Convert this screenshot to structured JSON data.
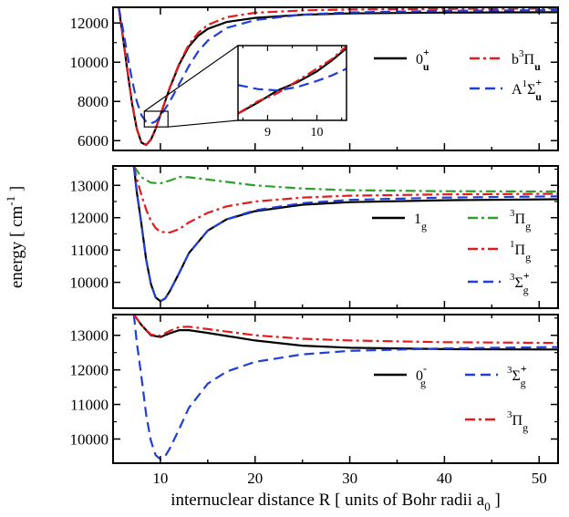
{
  "chart_data": [
    {
      "type": "line",
      "panel": "top",
      "xlim": [
        5,
        52
      ],
      "ylim": [
        5500,
        12800
      ],
      "yticks": [
        6000,
        8000,
        10000,
        12000
      ],
      "xticks": [
        10,
        20,
        30,
        40,
        50
      ],
      "legend_placement": "right",
      "series": [
        {
          "name_main": "0",
          "name_sub": "u",
          "name_sup": "+",
          "color": "#000000",
          "dash": "solid",
          "points": [
            [
              5.6,
              12800
            ],
            [
              6,
              11400
            ],
            [
              6.5,
              9600
            ],
            [
              7,
              7900
            ],
            [
              7.5,
              6600
            ],
            [
              8,
              5900
            ],
            [
              8.5,
              5780
            ],
            [
              9,
              6050
            ],
            [
              9.5,
              6600
            ],
            [
              10,
              7300
            ],
            [
              11,
              8700
            ],
            [
              12,
              9900
            ],
            [
              13,
              10800
            ],
            [
              14,
              11350
            ],
            [
              15,
              11700
            ],
            [
              17,
              12050
            ],
            [
              20,
              12260
            ],
            [
              25,
              12420
            ],
            [
              30,
              12490
            ],
            [
              40,
              12530
            ],
            [
              52,
              12550
            ]
          ]
        },
        {
          "name_main": "b",
          "name_supmain": "3",
          "name_greek": "Π",
          "name_sub": "u",
          "color": "#e41a1c",
          "dash": "dashdot",
          "points": [
            [
              5.6,
              12800
            ],
            [
              6,
              11450
            ],
            [
              6.5,
              9650
            ],
            [
              7,
              7950
            ],
            [
              7.5,
              6620
            ],
            [
              8,
              5910
            ],
            [
              8.5,
              5790
            ],
            [
              9,
              6070
            ],
            [
              9.5,
              6620
            ],
            [
              10,
              7320
            ],
            [
              11,
              8730
            ],
            [
              12,
              9950
            ],
            [
              13,
              10900
            ],
            [
              14,
              11500
            ],
            [
              15,
              11900
            ],
            [
              17,
              12300
            ],
            [
              20,
              12520
            ],
            [
              25,
              12640
            ],
            [
              30,
              12690
            ],
            [
              40,
              12720
            ],
            [
              52,
              12740
            ]
          ]
        },
        {
          "name_main": "A",
          "name_supmain": "1",
          "name_greek": "Σ",
          "name_sub": "u",
          "name_sup": "+",
          "color": "#1f3fd6",
          "dash": "dashed",
          "points": [
            [
              5.6,
              12800
            ],
            [
              6,
              11800
            ],
            [
              6.5,
              10400
            ],
            [
              7,
              9100
            ],
            [
              7.5,
              8000
            ],
            [
              8,
              7300
            ],
            [
              8.5,
              6960
            ],
            [
              9,
              6880
            ],
            [
              9.5,
              6980
            ],
            [
              10,
              7250
            ],
            [
              11,
              8000
            ],
            [
              12,
              8900
            ],
            [
              13,
              9800
            ],
            [
              14,
              10550
            ],
            [
              15,
              11100
            ],
            [
              17,
              11750
            ],
            [
              20,
              12150
            ],
            [
              25,
              12430
            ],
            [
              30,
              12540
            ],
            [
              40,
              12620
            ],
            [
              52,
              12660
            ]
          ]
        }
      ],
      "inset": {
        "xlim": [
          8.4,
          10.6
        ],
        "ylim": [
          6700,
          7250
        ],
        "xticks": [
          9,
          10
        ],
        "series": [
          {
            "color": "#000000",
            "dash": "solid",
            "points": [
              [
                8.4,
                6750
              ],
              [
                8.8,
                6830
              ],
              [
                9.2,
                6920
              ],
              [
                9.6,
                6980
              ],
              [
                10.0,
                7060
              ],
              [
                10.3,
                7140
              ],
              [
                10.6,
                7230
              ]
            ]
          },
          {
            "color": "#e41a1c",
            "dash": "dashdot",
            "points": [
              [
                8.4,
                6750
              ],
              [
                8.8,
                6840
              ],
              [
                9.2,
                6900
              ],
              [
                9.6,
                6990
              ],
              [
                10.0,
                7080
              ],
              [
                10.3,
                7150
              ],
              [
                10.6,
                7245
              ]
            ]
          },
          {
            "color": "#1f3fd6",
            "dash": "dashed",
            "points": [
              [
                8.4,
                6960
              ],
              [
                8.8,
                6930
              ],
              [
                9.2,
                6920
              ],
              [
                9.6,
                6945
              ],
              [
                10.0,
                6990
              ],
              [
                10.3,
                7030
              ],
              [
                10.6,
                7080
              ]
            ]
          }
        ]
      }
    },
    {
      "type": "line",
      "panel": "middle",
      "xlim": [
        5,
        52
      ],
      "ylim": [
        9200,
        13600
      ],
      "yticks": [
        10000,
        11000,
        12000,
        13000
      ],
      "xticks": [
        10,
        20,
        30,
        40,
        50
      ],
      "ylabel_main": "energy [ cm",
      "ylabel_sup": "-1",
      "ylabel_end": " ]",
      "legend_placement": "right",
      "series": [
        {
          "name_main": "1",
          "name_sub": "g",
          "color": "#000000",
          "dash": "solid",
          "points": [
            [
              7.2,
              13600
            ],
            [
              7.5,
              12800
            ],
            [
              8,
              11800
            ],
            [
              8.5,
              10700
            ],
            [
              9,
              9950
            ],
            [
              9.5,
              9530
            ],
            [
              10,
              9420
            ],
            [
              10.5,
              9500
            ],
            [
              11,
              9730
            ],
            [
              12,
              10300
            ],
            [
              13,
              10900
            ],
            [
              15,
              11600
            ],
            [
              17,
              11950
            ],
            [
              20,
              12200
            ],
            [
              25,
              12400
            ],
            [
              30,
              12480
            ],
            [
              40,
              12540
            ],
            [
              52,
              12570
            ]
          ]
        },
        {
          "name_main": "",
          "name_supmain": "3",
          "name_greek": "Π",
          "name_sub": "g",
          "color": "#2ca02c",
          "dash": "dashdot",
          "points": [
            [
              7.2,
              13600
            ],
            [
              8,
              13250
            ],
            [
              9,
              13080
            ],
            [
              10,
              13060
            ],
            [
              11,
              13150
            ],
            [
              12,
              13260
            ],
            [
              13,
              13250
            ],
            [
              15,
              13180
            ],
            [
              20,
              13000
            ],
            [
              25,
              12900
            ],
            [
              30,
              12850
            ],
            [
              40,
              12820
            ],
            [
              52,
              12810
            ]
          ]
        },
        {
          "name_main": "",
          "name_supmain": "1",
          "name_greek": "Π",
          "name_sub": "g",
          "color": "#e41a1c",
          "dash": "dashdot",
          "points": [
            [
              7.2,
              13600
            ],
            [
              7.5,
              13200
            ],
            [
              8,
              12700
            ],
            [
              8.5,
              12250
            ],
            [
              9,
              11900
            ],
            [
              9.5,
              11680
            ],
            [
              10,
              11560
            ],
            [
              11,
              11540
            ],
            [
              12,
              11650
            ],
            [
              13,
              11850
            ],
            [
              15,
              12150
            ],
            [
              17,
              12350
            ],
            [
              20,
              12500
            ],
            [
              25,
              12620
            ],
            [
              30,
              12680
            ],
            [
              40,
              12720
            ],
            [
              52,
              12740
            ]
          ]
        },
        {
          "name_main": "",
          "name_supmain": "3",
          "name_greek": "Σ",
          "name_sub": "g",
          "name_sup": "+",
          "color": "#1f3fd6",
          "dash": "dashed",
          "points": [
            [
              7.2,
              13600
            ],
            [
              7.5,
              12800
            ],
            [
              8,
              11800
            ],
            [
              8.5,
              10700
            ],
            [
              9,
              9950
            ],
            [
              9.5,
              9530
            ],
            [
              10,
              9420
            ],
            [
              10.5,
              9500
            ],
            [
              11,
              9730
            ],
            [
              12,
              10300
            ],
            [
              13,
              10900
            ],
            [
              15,
              11600
            ],
            [
              17,
              11950
            ],
            [
              20,
              12230
            ],
            [
              25,
              12450
            ],
            [
              30,
              12550
            ],
            [
              40,
              12620
            ],
            [
              52,
              12660
            ]
          ]
        }
      ]
    },
    {
      "type": "line",
      "panel": "bottom",
      "xlim": [
        5,
        52
      ],
      "ylim": [
        9300,
        13600
      ],
      "yticks": [
        10000,
        11000,
        12000,
        13000
      ],
      "xticks": [
        10,
        20,
        30,
        40,
        50
      ],
      "xlabel_main": "internuclear distance R [ units of Bohr radii a",
      "xlabel_sub": "0",
      "xlabel_end": " ]",
      "legend_placement": "right",
      "series": [
        {
          "name_main": "0",
          "name_sub": "g",
          "name_sup": "-",
          "color": "#000000",
          "dash": "solid",
          "points": [
            [
              7.2,
              13600
            ],
            [
              8,
              13300
            ],
            [
              9,
              13000
            ],
            [
              10,
              12950
            ],
            [
              11,
              13060
            ],
            [
              12,
              13150
            ],
            [
              13,
              13150
            ],
            [
              15,
              13070
            ],
            [
              20,
              12850
            ],
            [
              25,
              12700
            ],
            [
              30,
              12640
            ],
            [
              40,
              12600
            ],
            [
              52,
              12590
            ]
          ]
        },
        {
          "name_main": "",
          "name_supmain": "3",
          "name_greek": "Σ",
          "name_sub": "g",
          "name_sup": "+",
          "color": "#1f3fd6",
          "dash": "dashed",
          "points": [
            [
              7.2,
              13600
            ],
            [
              7.5,
              12800
            ],
            [
              8,
              11800
            ],
            [
              8.5,
              10700
            ],
            [
              9,
              9950
            ],
            [
              9.5,
              9530
            ],
            [
              10,
              9420
            ],
            [
              10.5,
              9500
            ],
            [
              11,
              9730
            ],
            [
              12,
              10300
            ],
            [
              13,
              10900
            ],
            [
              15,
              11600
            ],
            [
              17,
              11950
            ],
            [
              20,
              12230
            ],
            [
              25,
              12450
            ],
            [
              30,
              12550
            ],
            [
              40,
              12620
            ],
            [
              52,
              12660
            ]
          ]
        },
        {
          "name_main": "",
          "name_supmain": "3",
          "name_greek": "Π",
          "name_sub": "g",
          "color": "#e41a1c",
          "dash": "dashdot",
          "points": [
            [
              7.2,
              13600
            ],
            [
              8,
              13300
            ],
            [
              9,
              13020
            ],
            [
              10,
              12990
            ],
            [
              11,
              13130
            ],
            [
              12,
              13240
            ],
            [
              13,
              13250
            ],
            [
              15,
              13180
            ],
            [
              20,
              13000
            ],
            [
              25,
              12900
            ],
            [
              30,
              12850
            ],
            [
              40,
              12800
            ],
            [
              52,
              12780
            ]
          ]
        }
      ]
    }
  ]
}
